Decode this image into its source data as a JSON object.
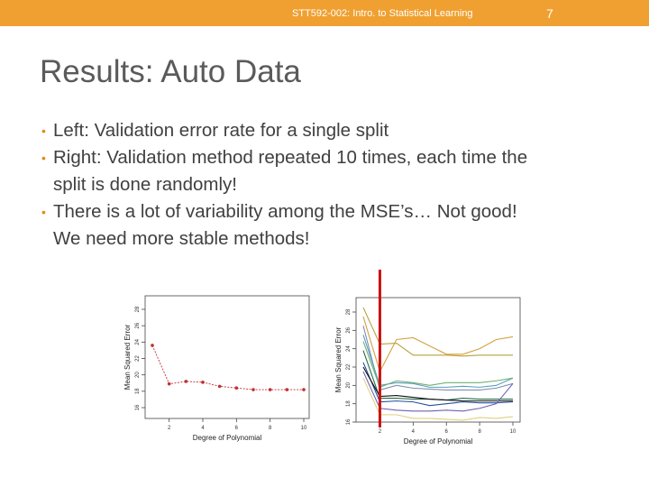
{
  "header": {
    "course": "STT592-002: Intro. to Statistical Learning",
    "page_number": "7",
    "bar_color": "#f0a030"
  },
  "title": "Results: Auto Data",
  "bullets": [
    "Left: Validation error rate for a single split",
    "Right: Validation method repeated 10 times, each time the\nsplit is done randomly!",
    "There is a lot of variability among the MSE’s… Not good!\nWe need more stable methods!"
  ],
  "chart_data": [
    {
      "type": "line",
      "xlabel": "Degree of Polynomial",
      "ylabel": "Mean Squared Error",
      "xlim": [
        1,
        10
      ],
      "ylim": [
        16,
        28
      ],
      "xticks": [
        2,
        4,
        6,
        8,
        10
      ],
      "yticks": [
        16,
        18,
        20,
        22,
        24,
        26,
        28
      ],
      "series": [
        {
          "color": "#c03030",
          "x": [
            1,
            2,
            3,
            4,
            5,
            6,
            7,
            8,
            9,
            10
          ],
          "values": [
            23.6,
            18.9,
            19.2,
            19.1,
            18.6,
            18.4,
            18.2,
            18.2,
            18.2,
            18.2
          ]
        }
      ]
    },
    {
      "type": "line",
      "xlabel": "Degree of Polynomial",
      "ylabel": "Mean Squared Error",
      "xlim": [
        1,
        10
      ],
      "ylim": [
        16,
        28
      ],
      "xticks": [
        2,
        4,
        6,
        8,
        10
      ],
      "yticks": [
        16,
        18,
        20,
        22,
        24,
        26,
        28
      ],
      "vline_x": 2,
      "vline_color": "#cc1111",
      "series": [
        {
          "color": "#b8a03c",
          "values": [
            28.5,
            24.5,
            24.6,
            23.3,
            23.3,
            23.3,
            23.2,
            23.3,
            23.3,
            23.3
          ]
        },
        {
          "color": "#d4a040",
          "values": [
            27.5,
            21.5,
            25.0,
            25.2,
            24.3,
            23.4,
            23.4,
            24.0,
            25.0,
            25.3
          ]
        },
        {
          "color": "#8090b0",
          "values": [
            26.5,
            19.5,
            20.0,
            19.7,
            19.6,
            19.5,
            19.5,
            19.5,
            19.7,
            20.2
          ]
        },
        {
          "color": "#5a9ec0",
          "values": [
            25.5,
            20.0,
            20.3,
            20.2,
            19.8,
            19.8,
            19.9,
            19.8,
            20.0,
            20.8
          ]
        },
        {
          "color": "#70b070",
          "values": [
            24.8,
            19.8,
            20.5,
            20.3,
            20.0,
            20.3,
            20.3,
            20.3,
            20.5,
            20.8
          ]
        },
        {
          "color": "#2a6a4a",
          "values": [
            23.8,
            18.6,
            18.6,
            18.5,
            18.5,
            18.4,
            18.6,
            18.5,
            18.5,
            18.5
          ]
        },
        {
          "color": "#2050a0",
          "values": [
            22.5,
            18.2,
            18.3,
            18.2,
            17.8,
            18.0,
            18.2,
            18.1,
            18.1,
            18.2
          ]
        },
        {
          "color": "#101010",
          "values": [
            22.0,
            18.8,
            18.9,
            18.7,
            18.5,
            18.4,
            18.3,
            18.3,
            18.3,
            18.3
          ]
        },
        {
          "color": "#7060b0",
          "values": [
            21.5,
            17.5,
            17.3,
            17.2,
            17.2,
            17.3,
            17.2,
            17.5,
            18.0,
            20.2
          ]
        },
        {
          "color": "#e0d080",
          "values": [
            20.8,
            16.8,
            16.8,
            16.4,
            16.4,
            16.3,
            16.2,
            16.5,
            16.4,
            16.6
          ]
        }
      ]
    }
  ]
}
